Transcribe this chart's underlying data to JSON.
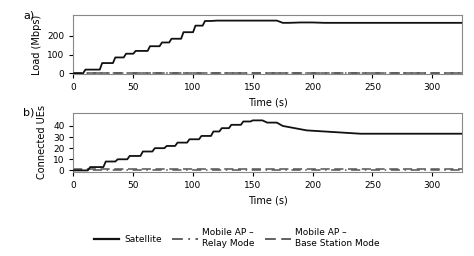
{
  "title_a": "a)",
  "title_b": "b)",
  "xlabel": "Time (s)",
  "ylabel_a": "Load (Mbps)",
  "ylabel_b": "Connected UEs",
  "xlim": [
    0,
    325
  ],
  "ylim_a": [
    -5,
    310
  ],
  "ylim_b": [
    -1,
    52
  ],
  "xticks": [
    0,
    50,
    100,
    150,
    200,
    250,
    300
  ],
  "yticks_a": [
    0,
    100,
    200
  ],
  "yticks_b": [
    0,
    10,
    20,
    30,
    40
  ],
  "background": "#ffffff",
  "line_color": "#111111",
  "dash_color": "#333333",
  "relay_color": "#555555",
  "bs_color": "#555555"
}
